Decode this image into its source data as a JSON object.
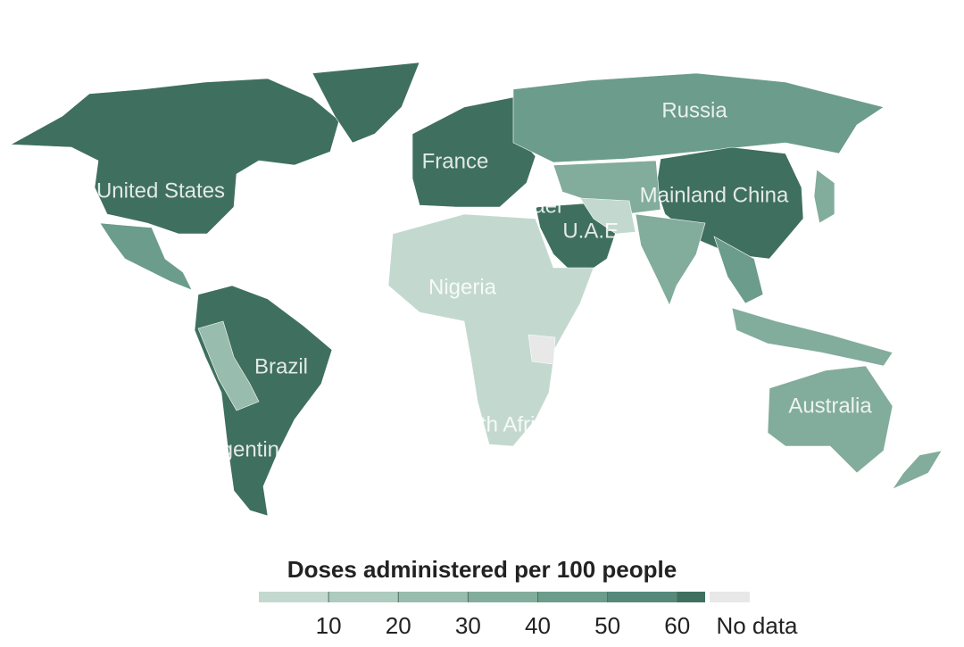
{
  "map": {
    "labels": [
      "Russia",
      "United States",
      "France",
      "Mainland China",
      "Israel",
      "U.A.E.",
      "Nigeria",
      "Brazil",
      "Australia",
      "South Africa",
      "Argentina"
    ],
    "legend": {
      "title": "Doses administered per 100 people",
      "lim": [
        0,
        64
      ],
      "bins": [
        0,
        10,
        20,
        30,
        40,
        50,
        60,
        64
      ],
      "colors": [
        "#c3d9cf",
        "#aecbbf",
        "#98bcad",
        "#82ac9c",
        "#6c9c8b",
        "#56897a",
        "#3f6f5f"
      ],
      "ticks": [
        10,
        20,
        30,
        40,
        50,
        60
      ],
      "no_data_label": "No data",
      "no_data_color": "#e8e8e8"
    }
  }
}
